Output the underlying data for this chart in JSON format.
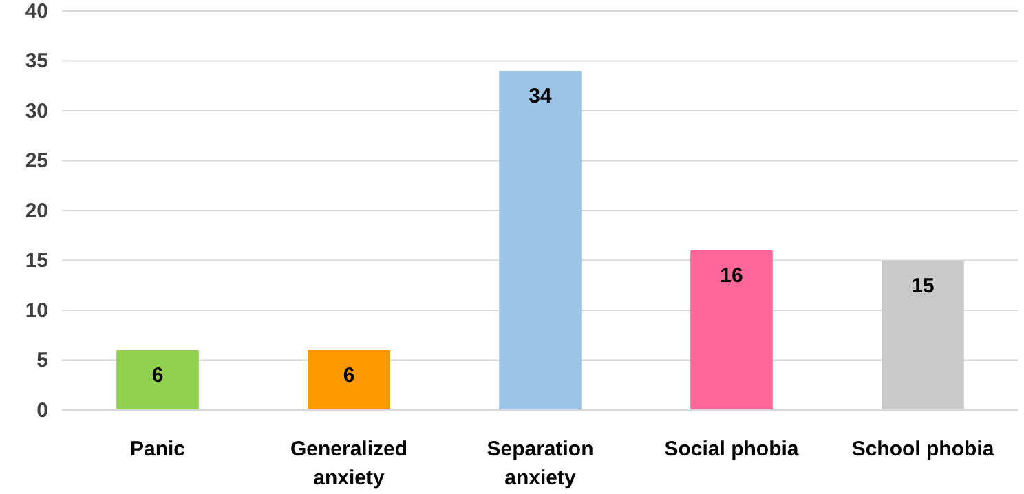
{
  "chart_data": {
    "type": "bar",
    "categories": [
      "Panic",
      "Generalized anxiety",
      "Separation anxiety",
      "Social phobia",
      "School phobia"
    ],
    "values": [
      6,
      6,
      34,
      16,
      15
    ],
    "colors": [
      "#92d050",
      "#ff9900",
      "#9dc3e6",
      "#ff6699",
      "#c9c9c9"
    ],
    "ylim": [
      0,
      40
    ],
    "yticks": [
      0,
      5,
      10,
      15,
      20,
      25,
      30,
      35,
      40
    ],
    "grid": "y",
    "data_labels": true
  }
}
